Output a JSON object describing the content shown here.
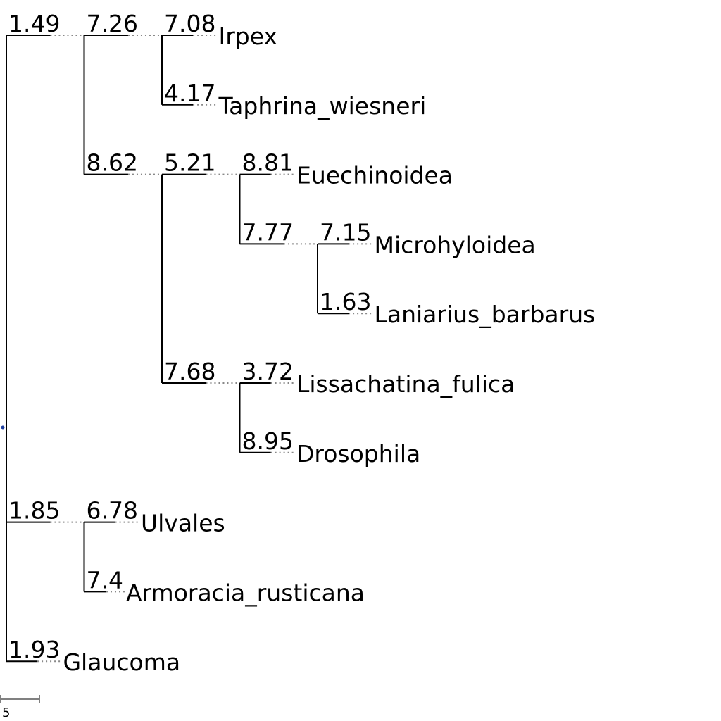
{
  "tree": {
    "root": {
      "children": [
        {
          "label": "1.49",
          "children": [
            {
              "label": "7.26",
              "children": [
                {
                  "label": "7.08",
                  "leaf": "Irpex"
                },
                {
                  "label": "4.17",
                  "leaf": "Taphrina_wiesneri"
                }
              ]
            },
            {
              "label": "8.62",
              "children": [
                {
                  "label": "5.21",
                  "children": [
                    {
                      "label": "8.81",
                      "leaf": "Euechinoidea"
                    },
                    {
                      "label": "7.77",
                      "children": [
                        {
                          "label": "7.15",
                          "leaf": "Microhyloidea"
                        },
                        {
                          "label": "1.63",
                          "leaf": "Laniarius_barbarus"
                        }
                      ]
                    }
                  ]
                },
                {
                  "label": "7.68",
                  "children": [
                    {
                      "label": "3.72",
                      "leaf": "Lissachatina_fulica"
                    },
                    {
                      "label": "8.95",
                      "leaf": "Drosophila"
                    }
                  ]
                }
              ]
            }
          ]
        },
        {
          "label": "1.85",
          "children": [
            {
              "label": "6.78",
              "leaf": "Ulvales"
            },
            {
              "label": "7.4",
              "leaf": "Armoracia_rusticana"
            }
          ]
        },
        {
          "label": "1.93",
          "leaf": "Glaucoma"
        }
      ]
    }
  },
  "scale_bar": {
    "label": "5"
  },
  "colors": {
    "branch": "#000000",
    "guide": "#888888",
    "root_dot": "#1f3f9f"
  }
}
